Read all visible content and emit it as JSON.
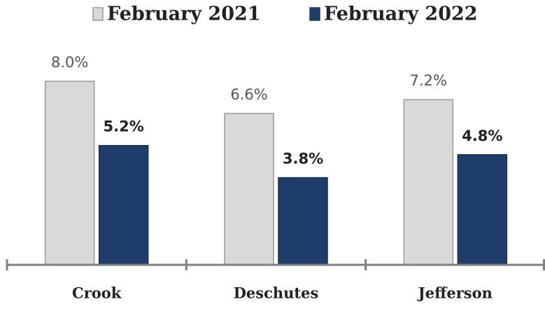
{
  "chart_data": {
    "type": "bar",
    "categories": [
      "Crook",
      "Deschutes",
      "Jefferson"
    ],
    "series": [
      {
        "name": "February 2021",
        "color": "#d9d9d9",
        "values": [
          8.0,
          6.6,
          7.2
        ],
        "value_labels": [
          "8.0%",
          "6.6%",
          "7.2%"
        ]
      },
      {
        "name": "February 2022",
        "color": "#1f3d6b",
        "values": [
          5.2,
          3.8,
          4.8
        ],
        "value_labels": [
          "5.2%",
          "3.8%",
          "4.8%"
        ]
      }
    ],
    "legend": "top"
  }
}
